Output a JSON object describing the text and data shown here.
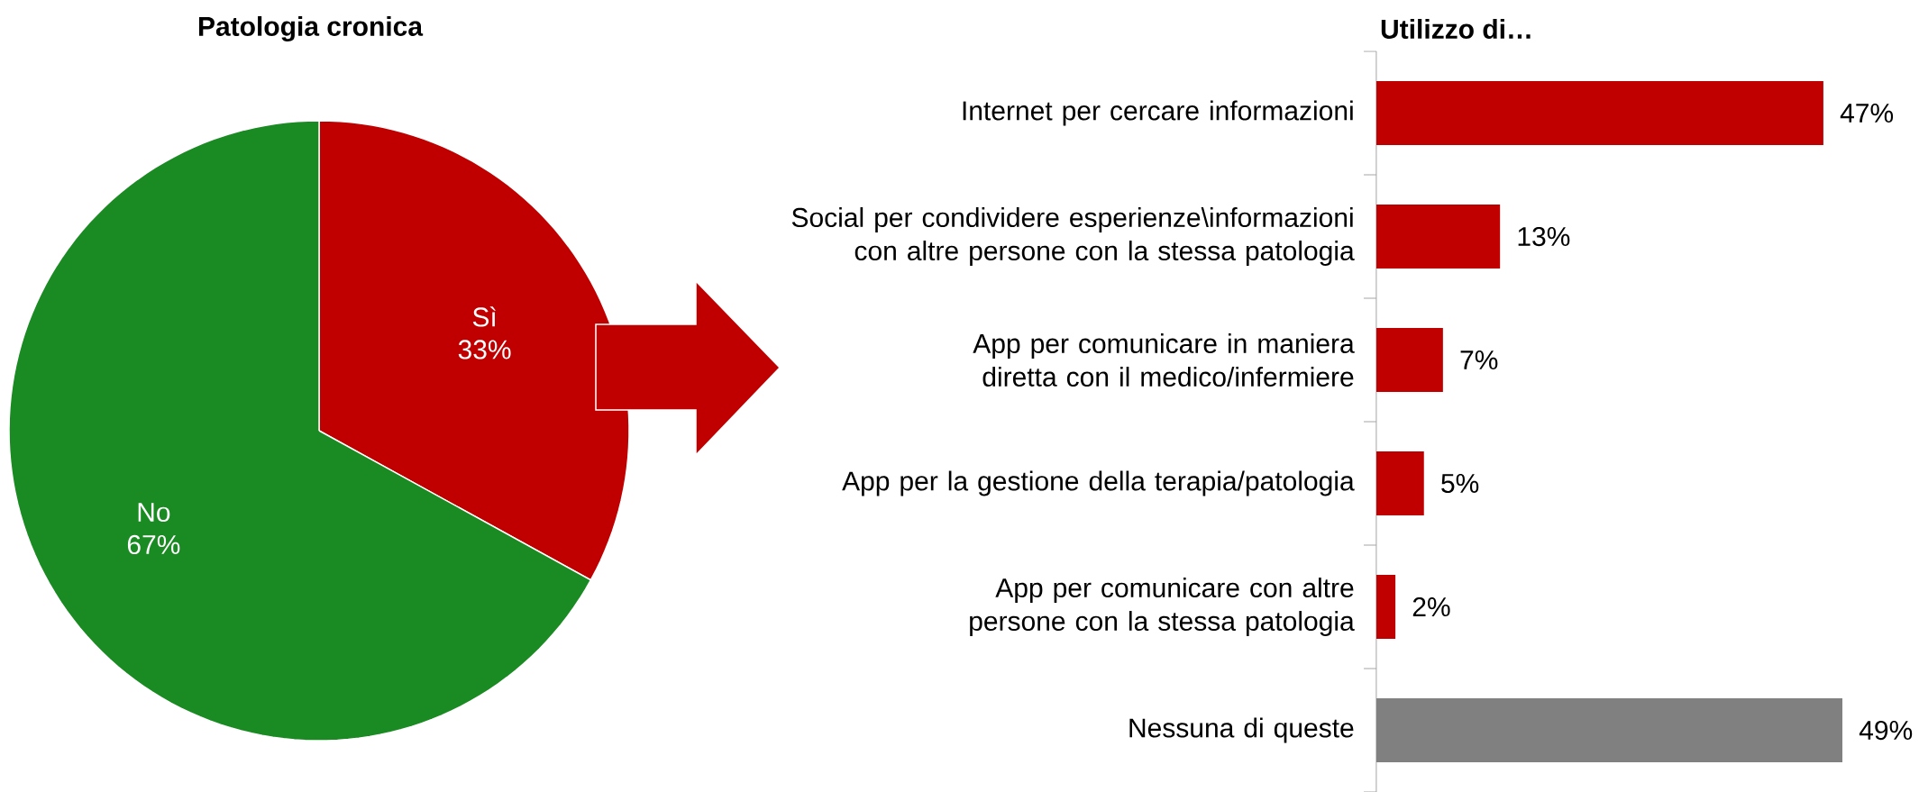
{
  "chart_data": [
    {
      "type": "pie",
      "title": "Patologia cronica",
      "categories": [
        "Sì",
        "No"
      ],
      "values": [
        33,
        67
      ],
      "colors": [
        "#c00000",
        "#1a8a22"
      ],
      "value_labels": [
        "33%",
        "67%"
      ]
    },
    {
      "type": "bar",
      "orientation": "horizontal",
      "title": "Utilizzo di…",
      "categories": [
        "Internet per cercare informazioni",
        "Social per condividere esperienze\\informazioni con altre persone con la stessa patologia",
        "App per comunicare in maniera diretta con il medico/infermiere",
        "App per la gestione della terapia/patologia",
        "App per comunicare con altre persone con la stessa patologia",
        "Nessuna di queste"
      ],
      "values": [
        47,
        13,
        7,
        5,
        2,
        49
      ],
      "colors": [
        "#c00000",
        "#c00000",
        "#c00000",
        "#c00000",
        "#c00000",
        "#808080"
      ],
      "value_labels": [
        "47%",
        "13%",
        "7%",
        "5%",
        "2%",
        "49%"
      ]
    }
  ]
}
